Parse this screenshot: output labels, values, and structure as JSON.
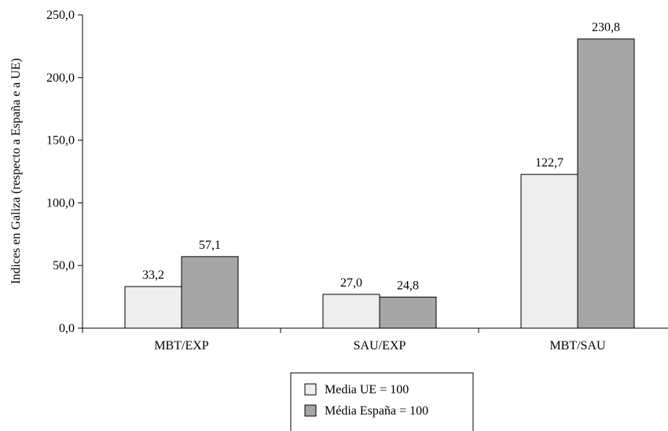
{
  "chart_data": {
    "type": "bar",
    "title": "",
    "xlabel": "",
    "ylabel": "Indices en Galiza (respecto a España e a UE)",
    "categories": [
      "MBT/EXP",
      "SAU/EXP",
      "MBT/SAU"
    ],
    "series": [
      {
        "name": "Media UE = 100",
        "values": [
          33.2,
          27.0,
          122.7
        ],
        "labels": [
          "33,2",
          "27,0",
          "122,7"
        ],
        "color": "#eeeeee"
      },
      {
        "name": "Média España = 100",
        "values": [
          57.1,
          24.8,
          230.8
        ],
        "labels": [
          "57,1",
          "24,8",
          "230,8"
        ],
        "color": "#a6a6a6"
      }
    ],
    "ylim": [
      0,
      250
    ],
    "yticks": [
      0,
      50,
      100,
      150,
      200,
      250
    ],
    "ytick_labels": [
      "0,0",
      "50,0",
      "100,0",
      "150,0",
      "200,0",
      "250,0"
    ],
    "grid": false,
    "legend_position": "bottom"
  }
}
